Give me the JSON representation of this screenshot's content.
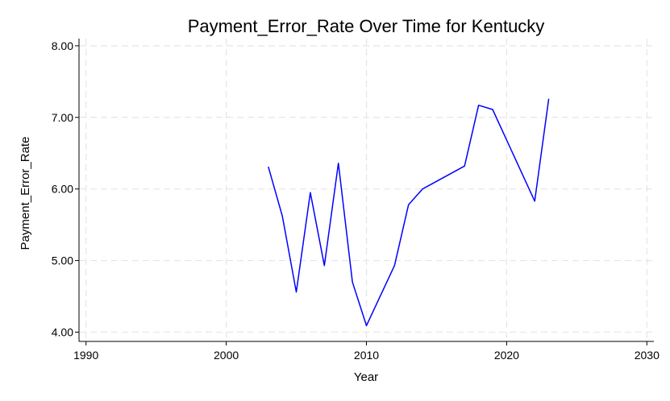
{
  "chart_data": {
    "type": "line",
    "title": "Payment_Error_Rate Over Time for Kentucky",
    "xlabel": "Year",
    "ylabel": "Payment_Error_Rate",
    "xlim": [
      1989.5,
      2030.5
    ],
    "ylim": [
      3.87,
      8.1
    ],
    "xticks": [
      1990,
      2000,
      2010,
      2020,
      2030
    ],
    "xtick_labels": [
      "1990",
      "2000",
      "2010",
      "2020",
      "2030"
    ],
    "yticks": [
      4,
      5,
      6,
      7,
      8
    ],
    "ytick_labels": [
      "4.00",
      "5.00",
      "6.00",
      "7.00",
      "8.00"
    ],
    "grid": true,
    "line_color": "#0000ff",
    "grid_color": "#e6e6e6",
    "series": [
      {
        "x": [
          2003,
          2004,
          2005,
          2006,
          2007,
          2008,
          2009,
          2010,
          2012,
          2013,
          2014,
          2017,
          2018,
          2019,
          2022,
          2023
        ],
        "y": [
          6.31,
          5.62,
          4.56,
          5.95,
          4.93,
          6.36,
          4.7,
          4.09,
          4.93,
          5.78,
          6.0,
          6.32,
          7.17,
          7.11,
          5.83,
          7.26
        ]
      }
    ]
  }
}
